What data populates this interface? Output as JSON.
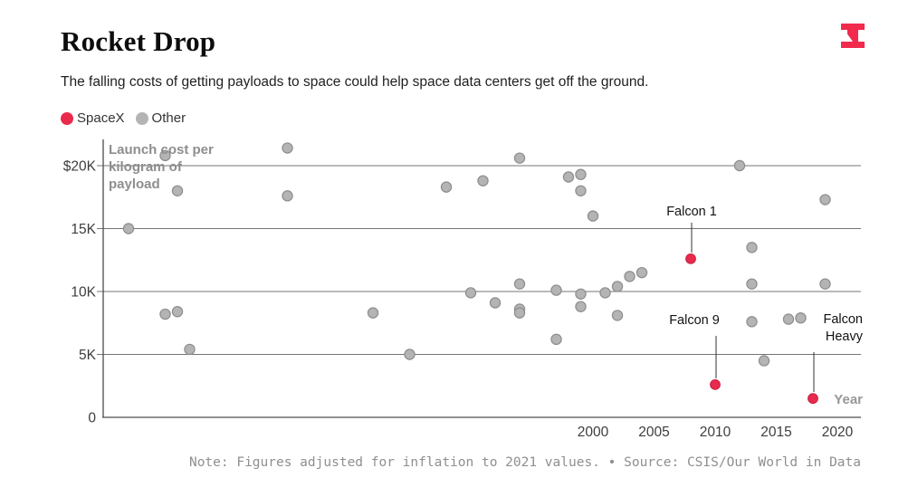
{
  "header": {
    "title": "Rocket Drop",
    "subtitle": "The falling costs of getting payloads to space could help space data centers get off the ground."
  },
  "logo": {
    "name": "the-information-logo",
    "color": "#f22a4d"
  },
  "legend": {
    "items": [
      {
        "label": "SpaceX",
        "color": "#e92a4c"
      },
      {
        "label": "Other",
        "color": "#b4b4b4"
      }
    ]
  },
  "chart_data": {
    "type": "scatter",
    "title": "Rocket Drop",
    "y_axis_title": "Launch cost per kilogram of payload",
    "x_axis_title": "Year",
    "x_ticks": [
      "2000",
      "2005",
      "2010",
      "2015",
      "2020"
    ],
    "x_tick_values": [
      2000,
      2005,
      2010,
      2015,
      2020
    ],
    "y_ticks": [
      "$20K",
      "15K",
      "10K",
      "5K",
      "0"
    ],
    "y_tick_values": [
      20000,
      15000,
      10000,
      5000,
      0
    ],
    "xlim": [
      1960,
      2022
    ],
    "ylim": [
      0,
      22000
    ],
    "grid": "horizontal",
    "legend_position": "top-left",
    "series": [
      {
        "name": "Other",
        "color": "#b4b4b4",
        "stroke": "#8d8d8d",
        "points": [
          {
            "year": 1962,
            "cost": 15000
          },
          {
            "year": 1965,
            "cost": 20800
          },
          {
            "year": 1965,
            "cost": 8200
          },
          {
            "year": 1966,
            "cost": 18000
          },
          {
            "year": 1966,
            "cost": 8400
          },
          {
            "year": 1967,
            "cost": 5400
          },
          {
            "year": 1975,
            "cost": 21400
          },
          {
            "year": 1975,
            "cost": 17600
          },
          {
            "year": 1982,
            "cost": 8300
          },
          {
            "year": 1985,
            "cost": 5000
          },
          {
            "year": 1988,
            "cost": 18300
          },
          {
            "year": 1990,
            "cost": 9900
          },
          {
            "year": 1991,
            "cost": 18800
          },
          {
            "year": 1992,
            "cost": 9100
          },
          {
            "year": 1994,
            "cost": 20600
          },
          {
            "year": 1994,
            "cost": 10600
          },
          {
            "year": 1994,
            "cost": 8600
          },
          {
            "year": 1994,
            "cost": 8300
          },
          {
            "year": 1997,
            "cost": 10100
          },
          {
            "year": 1997,
            "cost": 6200
          },
          {
            "year": 1998,
            "cost": 19100
          },
          {
            "year": 1999,
            "cost": 19300
          },
          {
            "year": 1999,
            "cost": 18000
          },
          {
            "year": 1999,
            "cost": 9800
          },
          {
            "year": 1999,
            "cost": 8800
          },
          {
            "year": 2000,
            "cost": 16000
          },
          {
            "year": 2001,
            "cost": 9900
          },
          {
            "year": 2002,
            "cost": 10400
          },
          {
            "year": 2002,
            "cost": 8100
          },
          {
            "year": 2003,
            "cost": 11200
          },
          {
            "year": 2004,
            "cost": 11500
          },
          {
            "year": 2012,
            "cost": 20000
          },
          {
            "year": 2013,
            "cost": 13500
          },
          {
            "year": 2013,
            "cost": 10600
          },
          {
            "year": 2013,
            "cost": 7600
          },
          {
            "year": 2014,
            "cost": 4500
          },
          {
            "year": 2016,
            "cost": 7800
          },
          {
            "year": 2017,
            "cost": 7900
          },
          {
            "year": 2019,
            "cost": 17300
          },
          {
            "year": 2019,
            "cost": 10600
          }
        ]
      },
      {
        "name": "SpaceX",
        "color": "#e92a4c",
        "stroke": "#cf2146",
        "points": [
          {
            "year": 2008,
            "cost": 12600,
            "label": "Falcon 1"
          },
          {
            "year": 2010,
            "cost": 2600,
            "label": "Falcon 9"
          },
          {
            "year": 2018,
            "cost": 1500,
            "label": "Falcon Heavy"
          }
        ]
      }
    ]
  },
  "annotations": {
    "falcon1": "Falcon 1",
    "falcon9": "Falcon 9",
    "falcon_heavy": "Falcon Heavy",
    "year_label": "Year"
  },
  "footer": {
    "note": "Note: Figures adjusted for inflation to 2021 values. • Source: CSIS/Our World in Data"
  }
}
